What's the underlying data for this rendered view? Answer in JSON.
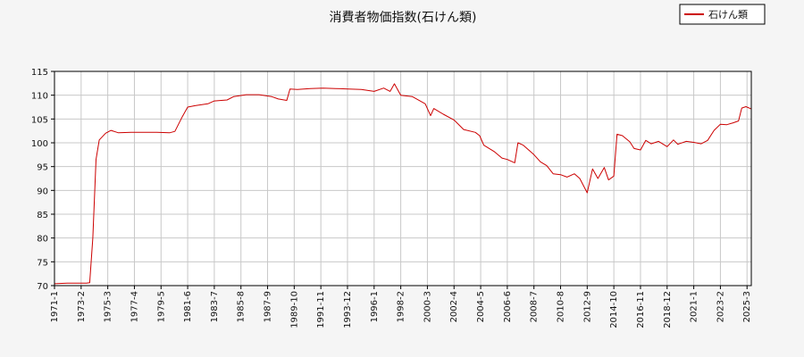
{
  "chart_data": {
    "type": "line",
    "title": "消費者物価指数(石けん類)",
    "xlabel": "",
    "ylabel": "",
    "ylim": [
      70,
      115
    ],
    "yticks": [
      70,
      75,
      80,
      85,
      90,
      95,
      100,
      105,
      110,
      115
    ],
    "xlim": [
      "1971-1",
      "2025-7"
    ],
    "xticks": [
      "1971-1",
      "1973-2",
      "1975-3",
      "1977-4",
      "1979-5",
      "1981-6",
      "1983-7",
      "1985-8",
      "1987-9",
      "1989-10",
      "1991-11",
      "1993-12",
      "1996-1",
      "1998-2",
      "2000-3",
      "2002-4",
      "2004-5",
      "2006-6",
      "2008-7",
      "2010-8",
      "2012-9",
      "2014-10",
      "2016-11",
      "2018-12",
      "2021-1",
      "2023-2",
      "2025-3"
    ],
    "grid": true,
    "legend_position": "top-right",
    "series": [
      {
        "name": "石けん類",
        "color": "#cc0000",
        "points": [
          [
            "1971-1",
            70.4
          ],
          [
            "1972-1",
            70.5
          ],
          [
            "1973-1",
            70.5
          ],
          [
            "1973-7",
            70.5
          ],
          [
            "1973-10",
            70.6
          ],
          [
            "1974-1",
            80.0
          ],
          [
            "1974-4",
            96.5
          ],
          [
            "1974-7",
            100.6
          ],
          [
            "1975-1",
            102.0
          ],
          [
            "1975-6",
            102.6
          ],
          [
            "1976-1",
            102.1
          ],
          [
            "1977-1",
            102.2
          ],
          [
            "1978-1",
            102.2
          ],
          [
            "1979-1",
            102.2
          ],
          [
            "1980-1",
            102.1
          ],
          [
            "1980-6",
            102.4
          ],
          [
            "1981-1",
            105.5
          ],
          [
            "1981-6",
            107.5
          ],
          [
            "1982-1",
            107.8
          ],
          [
            "1983-1",
            108.2
          ],
          [
            "1983-7",
            108.8
          ],
          [
            "1984-7",
            109.0
          ],
          [
            "1985-1",
            109.7
          ],
          [
            "1986-1",
            110.1
          ],
          [
            "1987-1",
            110.1
          ],
          [
            "1988-1",
            109.7
          ],
          [
            "1988-7",
            109.2
          ],
          [
            "1989-3",
            108.9
          ],
          [
            "1989-6",
            111.3
          ],
          [
            "1990-1",
            111.2
          ],
          [
            "1991-1",
            111.4
          ],
          [
            "1992-1",
            111.5
          ],
          [
            "1993-1",
            111.4
          ],
          [
            "1994-1",
            111.3
          ],
          [
            "1995-1",
            111.2
          ],
          [
            "1996-1",
            110.8
          ],
          [
            "1996-10",
            111.5
          ],
          [
            "1997-4",
            110.8
          ],
          [
            "1997-8",
            112.4
          ],
          [
            "1998-2",
            110.0
          ],
          [
            "1999-1",
            109.7
          ],
          [
            "2000-1",
            108.2
          ],
          [
            "2000-6",
            105.7
          ],
          [
            "2000-9",
            107.2
          ],
          [
            "2001-6",
            106.0
          ],
          [
            "2002-4",
            104.8
          ],
          [
            "2003-1",
            102.8
          ],
          [
            "2003-12",
            102.2
          ],
          [
            "2004-4",
            101.5
          ],
          [
            "2004-8",
            99.5
          ],
          [
            "2005-6",
            98.1
          ],
          [
            "2006-1",
            96.8
          ],
          [
            "2006-6",
            96.5
          ],
          [
            "2007-1",
            95.8
          ],
          [
            "2007-4",
            100.0
          ],
          [
            "2007-9",
            99.5
          ],
          [
            "2008-7",
            97.5
          ],
          [
            "2009-1",
            96.0
          ],
          [
            "2009-7",
            95.2
          ],
          [
            "2010-1",
            93.5
          ],
          [
            "2010-8",
            93.3
          ],
          [
            "2011-2",
            92.8
          ],
          [
            "2011-9",
            93.5
          ],
          [
            "2012-2",
            92.5
          ],
          [
            "2012-9",
            89.5
          ],
          [
            "2013-2",
            94.5
          ],
          [
            "2013-7",
            92.5
          ],
          [
            "2014-1",
            94.8
          ],
          [
            "2014-5",
            92.2
          ],
          [
            "2014-10",
            93.0
          ],
          [
            "2015-1",
            101.8
          ],
          [
            "2015-6",
            101.5
          ],
          [
            "2016-1",
            100.2
          ],
          [
            "2016-5",
            98.8
          ],
          [
            "2016-11",
            98.5
          ],
          [
            "2017-4",
            100.5
          ],
          [
            "2017-9",
            99.8
          ],
          [
            "2018-4",
            100.3
          ],
          [
            "2018-12",
            99.2
          ],
          [
            "2019-6",
            100.6
          ],
          [
            "2019-10",
            99.7
          ],
          [
            "2020-6",
            100.3
          ],
          [
            "2021-1",
            100.1
          ],
          [
            "2021-8",
            99.8
          ],
          [
            "2022-2",
            100.5
          ],
          [
            "2022-8",
            102.6
          ],
          [
            "2023-2",
            103.9
          ],
          [
            "2023-8",
            103.8
          ],
          [
            "2024-2",
            104.2
          ],
          [
            "2024-7",
            104.6
          ],
          [
            "2024-10",
            107.3
          ],
          [
            "2025-2",
            107.6
          ],
          [
            "2025-7",
            107.1
          ]
        ]
      }
    ]
  }
}
